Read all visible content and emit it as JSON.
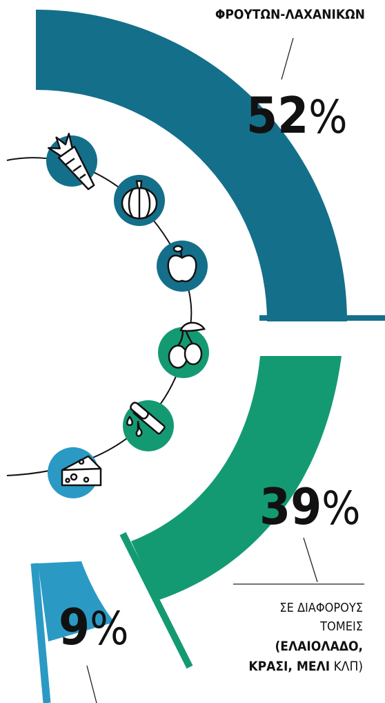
{
  "chart_data": {
    "type": "pie",
    "segments": [
      {
        "value": 52,
        "percent_label": "52",
        "label": "ΦΡΟΥΤΩΝ-ΛΑΧΑΝΙΚΩΝ",
        "color": "#146f8a"
      },
      {
        "value": 39,
        "percent_label": "39",
        "label_line1": "ΣΕ ΔΙΑΦΟΡΟΥΣ",
        "label_line2": "ΤΟΜΕΙΣ",
        "label_line3": "(ΕΛΑΙΟΛΑΔΟ,",
        "label_line4_bold": "ΚΡΑΣΙ, ΜΕΛΙ",
        "label_line4_regular": " ΚΛΠ)",
        "color": "#149a72"
      },
      {
        "value": 9,
        "percent_label": "9",
        "label": "",
        "color": "#2a9ac4"
      }
    ],
    "percent_sign": "%"
  },
  "icons": [
    {
      "name": "carrot-icon",
      "color": "#146f8a"
    },
    {
      "name": "pumpkin-icon",
      "color": "#146f8a"
    },
    {
      "name": "apple-icon",
      "color": "#146f8a"
    },
    {
      "name": "olives-icon",
      "color": "#149a72"
    },
    {
      "name": "honey-dipper-icon",
      "color": "#149a72"
    },
    {
      "name": "cheese-icon",
      "color": "#2a9ac4"
    }
  ]
}
